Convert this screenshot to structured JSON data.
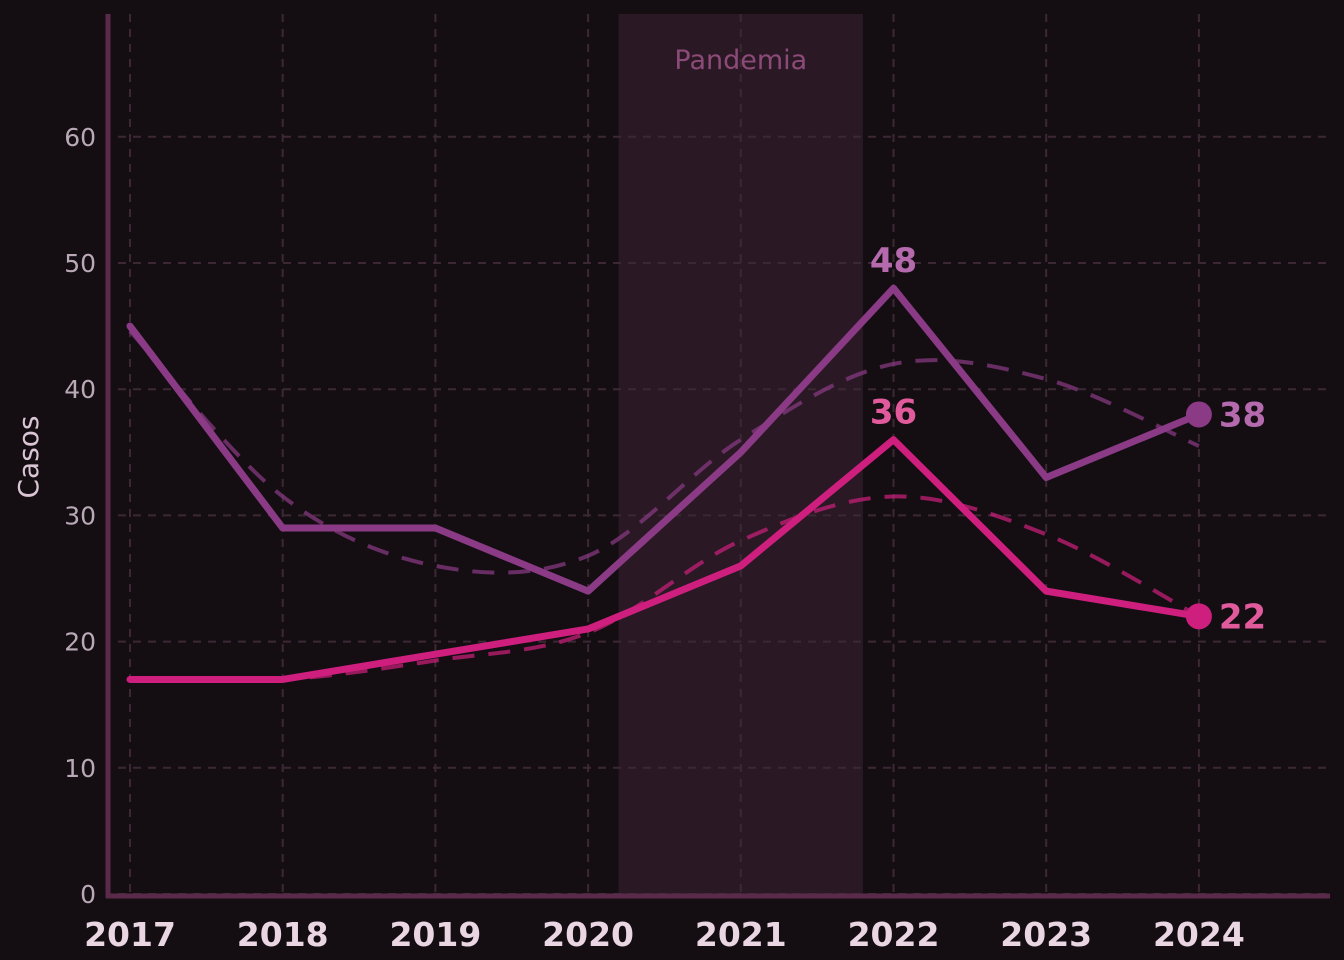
{
  "chart_data": {
    "type": "line",
    "title": "",
    "xlabel": "",
    "ylabel": "Casos",
    "x": [
      "2017",
      "2018",
      "2019",
      "2020",
      "2021",
      "2022",
      "2023",
      "2024"
    ],
    "ylim": [
      0,
      70
    ],
    "yticks": [
      0,
      10,
      20,
      30,
      40,
      50,
      60
    ],
    "grid": true,
    "series": [
      {
        "values": [
          45,
          29,
          29,
          24,
          35,
          48,
          33,
          38
        ],
        "trend": [
          44.6,
          31.5,
          26,
          26.8,
          36,
          42,
          40.8,
          35.5
        ],
        "color": "#8b3a86",
        "label_color": "#b56aae",
        "peak_label": "48",
        "end_label": "38"
      },
      {
        "values": [
          17,
          17,
          19,
          21,
          26,
          36,
          24,
          22
        ],
        "trend": [
          17,
          17,
          18.5,
          20.7,
          28,
          31.5,
          28.5,
          22
        ],
        "color": "#cf1f7e",
        "label_color": "#e05a9c",
        "peak_label": "36",
        "end_label": "22"
      }
    ],
    "annotations": [
      {
        "text": "Pandemia",
        "x_start": 2020.2,
        "x_end": 2021.8
      }
    ]
  }
}
